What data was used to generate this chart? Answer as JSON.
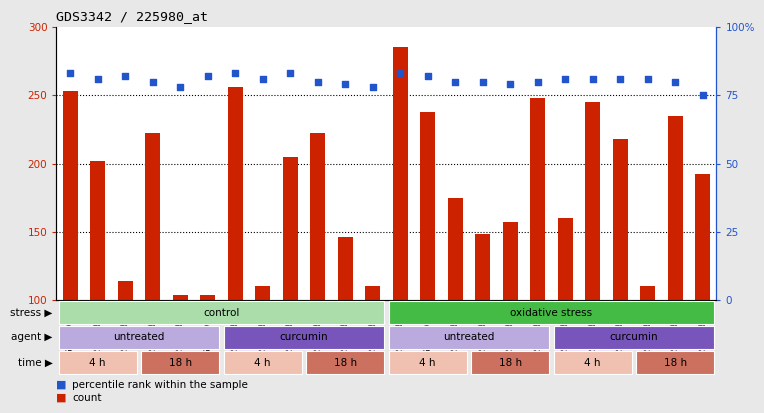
{
  "title": "GDS3342 / 225980_at",
  "samples": [
    "GSM276209",
    "GSM276217",
    "GSM276225",
    "GSM276213",
    "GSM276221",
    "GSM276229",
    "GSM276210",
    "GSM276218",
    "GSM276226",
    "GSM276214",
    "GSM276222",
    "GSM276230",
    "GSM276211",
    "GSM276219",
    "GSM276227",
    "GSM276215",
    "GSM276223",
    "GSM276231",
    "GSM276212",
    "GSM276220",
    "GSM276228",
    "GSM276216",
    "GSM276224",
    "GSM276232"
  ],
  "bar_values": [
    253,
    202,
    114,
    222,
    104,
    104,
    256,
    110,
    205,
    222,
    146,
    110,
    285,
    238,
    175,
    148,
    157,
    248,
    160,
    245,
    218,
    110,
    235,
    192
  ],
  "percentile_values": [
    83,
    81,
    82,
    80,
    78,
    82,
    83,
    81,
    83,
    80,
    79,
    78,
    83,
    82,
    80,
    80,
    79,
    80,
    81,
    81,
    81,
    81,
    80,
    75
  ],
  "bar_color": "#cc2200",
  "percentile_color": "#2255cc",
  "ylim_left": [
    100,
    300
  ],
  "ylim_right": [
    0,
    100
  ],
  "yticks_left": [
    100,
    150,
    200,
    250,
    300
  ],
  "yticks_right": [
    0,
    25,
    50,
    75,
    100
  ],
  "yticklabels_right": [
    "0",
    "25",
    "50",
    "75",
    "100%"
  ],
  "grid_lines": [
    150,
    200,
    250
  ],
  "bg_color": "#e8e8e8",
  "plot_bg": "#ffffff",
  "stress_segments": [
    {
      "text": "control",
      "start": 0,
      "end": 12,
      "color": "#aaddaa"
    },
    {
      "text": "oxidative stress",
      "start": 12,
      "end": 24,
      "color": "#44bb44"
    }
  ],
  "agent_segments": [
    {
      "text": "untreated",
      "start": 0,
      "end": 6,
      "color": "#bbaadd"
    },
    {
      "text": "curcumin",
      "start": 6,
      "end": 12,
      "color": "#7755bb"
    },
    {
      "text": "untreated",
      "start": 12,
      "end": 18,
      "color": "#bbaadd"
    },
    {
      "text": "curcumin",
      "start": 18,
      "end": 24,
      "color": "#7755bb"
    }
  ],
  "time_segments": [
    {
      "text": "4 h",
      "start": 0,
      "end": 3,
      "color": "#f0c0b0"
    },
    {
      "text": "18 h",
      "start": 3,
      "end": 6,
      "color": "#cc7060"
    },
    {
      "text": "4 h",
      "start": 6,
      "end": 9,
      "color": "#f0c0b0"
    },
    {
      "text": "18 h",
      "start": 9,
      "end": 12,
      "color": "#cc7060"
    },
    {
      "text": "4 h",
      "start": 12,
      "end": 15,
      "color": "#f0c0b0"
    },
    {
      "text": "18 h",
      "start": 15,
      "end": 18,
      "color": "#cc7060"
    },
    {
      "text": "4 h",
      "start": 18,
      "end": 21,
      "color": "#f0c0b0"
    },
    {
      "text": "18 h",
      "start": 21,
      "end": 24,
      "color": "#cc7060"
    }
  ],
  "row_labels": [
    "stress",
    "agent",
    "time"
  ],
  "legend_items": [
    {
      "label": "count",
      "color": "#cc2200"
    },
    {
      "label": "percentile rank within the sample",
      "color": "#2255cc"
    }
  ]
}
